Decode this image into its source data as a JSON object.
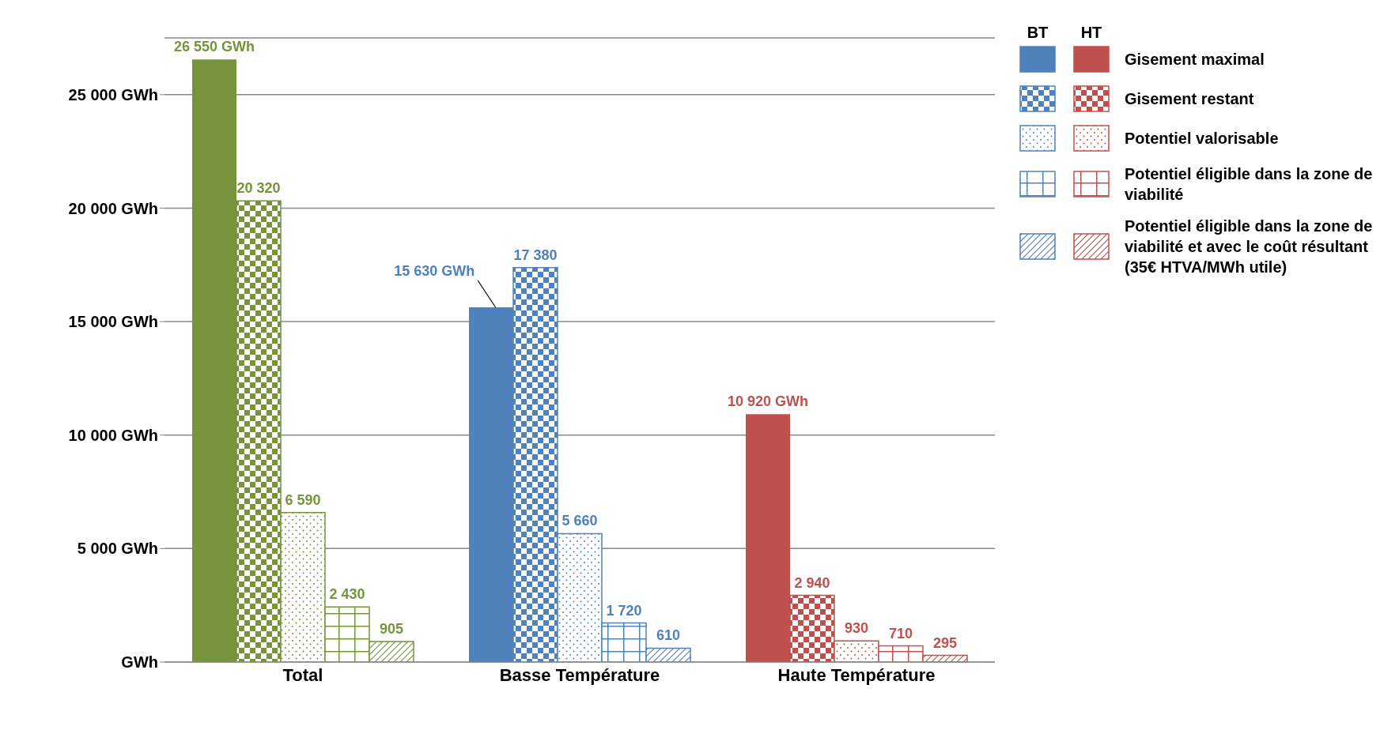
{
  "chart_data": {
    "type": "bar",
    "categories": [
      "Total",
      "Basse Température",
      "Haute Température"
    ],
    "series": [
      {
        "name": "Gisement maximal",
        "colors": [
          "#77933c",
          "#4f81bd",
          "#c0504d"
        ],
        "values": [
          26550,
          15630,
          10920
        ],
        "value_labels": [
          "26 550 GWh",
          "15 630 GWh",
          "10 920 GWh"
        ]
      },
      {
        "name": "Gisement restant",
        "colors": [
          "#77933c",
          "#4f81bd",
          "#c0504d"
        ],
        "values": [
          20320,
          17380,
          2940
        ],
        "value_labels": [
          "20 320",
          "17 380",
          "2 940"
        ]
      },
      {
        "name": "Potentiel valorisable",
        "colors": [
          "#77933c",
          "#4f81bd",
          "#c0504d"
        ],
        "values": [
          6590,
          5660,
          930
        ],
        "value_labels": [
          "6 590",
          "5 660",
          "930"
        ]
      },
      {
        "name": "Potentiel éligible  dans la zone de viabilité",
        "colors": [
          "#77933c",
          "#4f81bd",
          "#c0504d"
        ],
        "values": [
          2430,
          1720,
          710
        ],
        "value_labels": [
          "2 430",
          "1 720",
          "710"
        ]
      },
      {
        "name": "Potentiel éligible  dans la zone de viabilité et avec le coût résultant (35€ HTVA/MWh utile)",
        "colors": [
          "#77933c",
          "#4f81bd",
          "#c0504d"
        ],
        "values": [
          905,
          610,
          295
        ],
        "value_labels": [
          "905",
          "610",
          "295"
        ]
      }
    ],
    "annotations": [
      "BT",
      "HT"
    ],
    "ylim": [
      0,
      27500
    ],
    "yticks": [
      {
        "value": 0,
        "label": "GWh"
      },
      {
        "value": 5000,
        "label": "5 000 GWh"
      },
      {
        "value": 10000,
        "label": "10 000 GWh"
      },
      {
        "value": 15000,
        "label": "15 000 GWh"
      },
      {
        "value": 20000,
        "label": "20 000 GWh"
      },
      {
        "value": 25000,
        "label": "25 000 GWh"
      }
    ],
    "grid": "y",
    "legend": "top right"
  }
}
